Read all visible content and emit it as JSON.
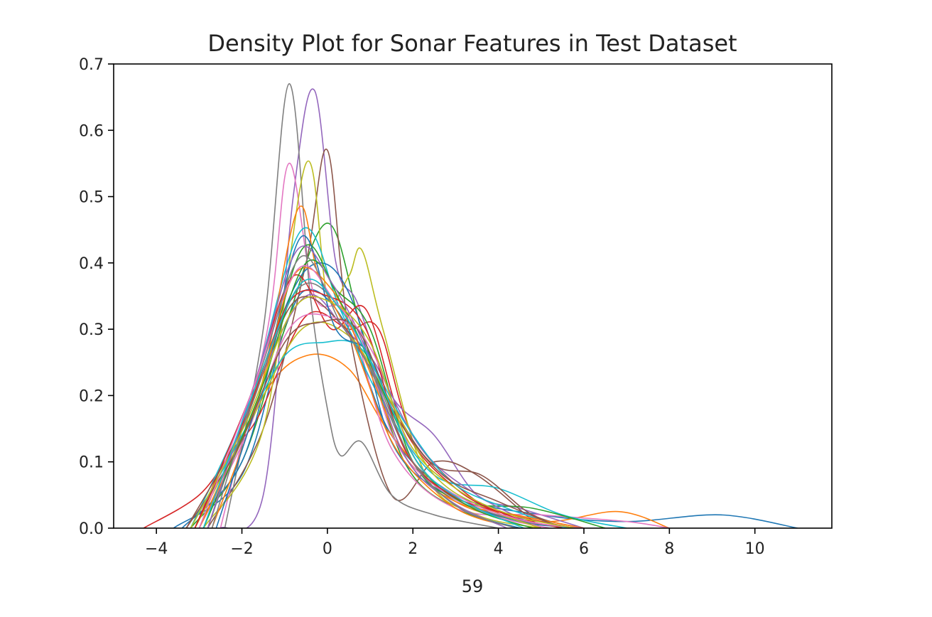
{
  "chart_data": {
    "type": "line",
    "title": "Density Plot for Sonar Features in Test Dataset",
    "xlabel": "59",
    "ylabel": "",
    "xlim": [
      -5,
      11.8
    ],
    "ylim": [
      0.0,
      0.7
    ],
    "xticks": [
      -4,
      -2,
      0,
      2,
      4,
      6,
      8,
      10
    ],
    "yticks": [
      0.0,
      0.1,
      0.2,
      0.3,
      0.4,
      0.5,
      0.6,
      0.7
    ],
    "xtick_labels": [
      "−4",
      "−2",
      "0",
      "2",
      "4",
      "6",
      "8",
      "10"
    ],
    "ytick_labels": [
      "0.0",
      "0.1",
      "0.2",
      "0.3",
      "0.4",
      "0.5",
      "0.6",
      "0.7"
    ],
    "grid": false,
    "legend": "none",
    "palette": [
      "#1f77b4",
      "#ff7f0e",
      "#2ca02c",
      "#d62728",
      "#9467bd",
      "#8c564b",
      "#e377c2",
      "#7f7f7f",
      "#bcbd22",
      "#17becf"
    ],
    "series": [
      {
        "values": [
          [
            -3.6,
            0.0
          ],
          [
            -2.0,
            0.08
          ],
          [
            -1.0,
            0.3
          ],
          [
            -0.4,
            0.36
          ],
          [
            0.5,
            0.3
          ],
          [
            1.5,
            0.14
          ],
          [
            3.0,
            0.05
          ],
          [
            5.0,
            0.02
          ],
          [
            7.0,
            0.01
          ],
          [
            9.2,
            0.02
          ],
          [
            11.0,
            0.0
          ]
        ]
      },
      {
        "values": [
          [
            -3.0,
            0.0
          ],
          [
            -1.5,
            0.2
          ],
          [
            -0.5,
            0.26
          ],
          [
            0.5,
            0.24
          ],
          [
            1.5,
            0.14
          ],
          [
            3.0,
            0.04
          ],
          [
            5.0,
            0.01
          ],
          [
            6.8,
            0.025
          ],
          [
            8.0,
            0.0
          ]
        ]
      },
      {
        "values": [
          [
            -3.2,
            0.0
          ],
          [
            -2.0,
            0.1
          ],
          [
            -1.0,
            0.3
          ],
          [
            0.0,
            0.46
          ],
          [
            0.8,
            0.3
          ],
          [
            1.8,
            0.1
          ],
          [
            3.0,
            0.03
          ],
          [
            4.5,
            0.0
          ]
        ]
      },
      {
        "values": [
          [
            -4.3,
            0.0
          ],
          [
            -3.0,
            0.05
          ],
          [
            -2.2,
            0.12
          ],
          [
            -1.6,
            0.17
          ],
          [
            -0.5,
            0.32
          ],
          [
            0.5,
            0.3
          ],
          [
            1.2,
            0.3
          ],
          [
            2.0,
            0.14
          ],
          [
            3.5,
            0.04
          ],
          [
            5.0,
            0.0
          ]
        ]
      },
      {
        "values": [
          [
            -2.5,
            0.0
          ],
          [
            -1.5,
            0.05
          ],
          [
            -0.8,
            0.5
          ],
          [
            -0.3,
            0.66
          ],
          [
            0.2,
            0.4
          ],
          [
            0.7,
            0.34
          ],
          [
            1.5,
            0.2
          ],
          [
            2.5,
            0.14
          ],
          [
            3.5,
            0.05
          ],
          [
            4.5,
            0.03
          ],
          [
            6.0,
            0.0
          ]
        ]
      },
      {
        "values": [
          [
            -2.8,
            0.0
          ],
          [
            -1.5,
            0.15
          ],
          [
            -0.5,
            0.4
          ],
          [
            0.0,
            0.57
          ],
          [
            0.5,
            0.3
          ],
          [
            1.5,
            0.05
          ],
          [
            2.5,
            0.1
          ],
          [
            3.5,
            0.08
          ],
          [
            5.0,
            0.0
          ]
        ]
      },
      {
        "values": [
          [
            -2.5,
            0.0
          ],
          [
            -1.4,
            0.3
          ],
          [
            -0.9,
            0.55
          ],
          [
            -0.3,
            0.35
          ],
          [
            0.5,
            0.32
          ],
          [
            1.5,
            0.12
          ],
          [
            3.0,
            0.03
          ],
          [
            5.0,
            0.02
          ],
          [
            7.0,
            0.01
          ],
          [
            8.0,
            0.0
          ]
        ]
      },
      {
        "values": [
          [
            -2.4,
            0.0
          ],
          [
            -1.5,
            0.3
          ],
          [
            -0.9,
            0.67
          ],
          [
            -0.4,
            0.35
          ],
          [
            0.0,
            0.18
          ],
          [
            0.3,
            0.11
          ],
          [
            0.8,
            0.13
          ],
          [
            1.5,
            0.05
          ],
          [
            2.5,
            0.02
          ],
          [
            4.0,
            0.0
          ]
        ]
      },
      {
        "values": [
          [
            -2.9,
            0.0
          ],
          [
            -1.5,
            0.15
          ],
          [
            -0.5,
            0.55
          ],
          [
            0.0,
            0.35
          ],
          [
            0.5,
            0.38
          ],
          [
            0.8,
            0.42
          ],
          [
            1.3,
            0.3
          ],
          [
            2.3,
            0.08
          ],
          [
            3.5,
            0.02
          ],
          [
            5.0,
            0.0
          ]
        ]
      },
      {
        "values": [
          [
            -3.2,
            0.0
          ],
          [
            -1.8,
            0.2
          ],
          [
            -0.6,
            0.45
          ],
          [
            0.3,
            0.33
          ],
          [
            1.2,
            0.2
          ],
          [
            2.5,
            0.08
          ],
          [
            4.0,
            0.06
          ],
          [
            5.5,
            0.02
          ],
          [
            7.0,
            0.0
          ]
        ]
      },
      {
        "values": [
          [
            -3.4,
            0.0
          ],
          [
            -2.0,
            0.1
          ],
          [
            -1.0,
            0.33
          ],
          [
            -0.2,
            0.4
          ],
          [
            0.6,
            0.34
          ],
          [
            1.5,
            0.13
          ],
          [
            2.8,
            0.05
          ],
          [
            4.5,
            0.01
          ],
          [
            6.0,
            0.0
          ]
        ]
      },
      {
        "values": [
          [
            -2.7,
            0.0
          ],
          [
            -1.6,
            0.2
          ],
          [
            -0.7,
            0.48
          ],
          [
            -0.2,
            0.38
          ],
          [
            0.6,
            0.28
          ],
          [
            1.6,
            0.12
          ],
          [
            3.0,
            0.03
          ],
          [
            4.5,
            0.0
          ]
        ]
      },
      {
        "values": [
          [
            -3.0,
            0.0
          ],
          [
            -1.7,
            0.18
          ],
          [
            -0.6,
            0.42
          ],
          [
            0.2,
            0.36
          ],
          [
            1.0,
            0.3
          ],
          [
            2.0,
            0.1
          ],
          [
            3.2,
            0.04
          ],
          [
            4.8,
            0.03
          ],
          [
            6.5,
            0.0
          ]
        ]
      },
      {
        "values": [
          [
            -3.1,
            0.0
          ],
          [
            -1.8,
            0.2
          ],
          [
            -0.8,
            0.38
          ],
          [
            0.1,
            0.3
          ],
          [
            0.9,
            0.33
          ],
          [
            1.8,
            0.15
          ],
          [
            3.0,
            0.06
          ],
          [
            4.2,
            0.02
          ],
          [
            5.5,
            0.0
          ]
        ]
      },
      {
        "values": [
          [
            -2.9,
            0.0
          ],
          [
            -1.6,
            0.22
          ],
          [
            -0.5,
            0.35
          ],
          [
            0.4,
            0.3
          ],
          [
            1.1,
            0.25
          ],
          [
            2.2,
            0.12
          ],
          [
            3.5,
            0.05
          ],
          [
            5.0,
            0.0
          ]
        ]
      },
      {
        "values": [
          [
            -3.3,
            0.0
          ],
          [
            -2.0,
            0.15
          ],
          [
            -0.8,
            0.34
          ],
          [
            0.3,
            0.31
          ],
          [
            1.2,
            0.22
          ],
          [
            2.4,
            0.1
          ],
          [
            3.6,
            0.08
          ],
          [
            4.8,
            0.02
          ],
          [
            6.0,
            0.0
          ]
        ]
      },
      {
        "values": [
          [
            -3.0,
            0.0
          ],
          [
            -1.9,
            0.14
          ],
          [
            -0.9,
            0.3
          ],
          [
            0.0,
            0.32
          ],
          [
            0.8,
            0.28
          ],
          [
            1.6,
            0.13
          ],
          [
            2.6,
            0.06
          ],
          [
            3.8,
            0.02
          ],
          [
            5.2,
            0.0
          ]
        ]
      },
      {
        "values": [
          [
            -2.8,
            0.0
          ],
          [
            -1.7,
            0.2
          ],
          [
            -0.7,
            0.36
          ],
          [
            0.2,
            0.34
          ],
          [
            1.0,
            0.24
          ],
          [
            2.0,
            0.1
          ],
          [
            3.2,
            0.04
          ],
          [
            4.6,
            0.01
          ],
          [
            6.0,
            0.0
          ]
        ]
      },
      {
        "values": [
          [
            -3.1,
            0.0
          ],
          [
            -1.8,
            0.16
          ],
          [
            -0.6,
            0.3
          ],
          [
            0.5,
            0.29
          ],
          [
            1.4,
            0.2
          ],
          [
            2.5,
            0.08
          ],
          [
            3.7,
            0.03
          ],
          [
            5.0,
            0.0
          ]
        ]
      },
      {
        "values": [
          [
            -3.2,
            0.0
          ],
          [
            -2.0,
            0.14
          ],
          [
            -1.0,
            0.26
          ],
          [
            -0.1,
            0.28
          ],
          [
            0.8,
            0.27
          ],
          [
            1.8,
            0.16
          ],
          [
            2.9,
            0.07
          ],
          [
            4.2,
            0.03
          ],
          [
            5.6,
            0.0
          ]
        ]
      },
      {
        "values": [
          [
            -2.6,
            0.0
          ],
          [
            -1.5,
            0.22
          ],
          [
            -0.6,
            0.44
          ],
          [
            0.2,
            0.3
          ],
          [
            1.0,
            0.26
          ],
          [
            1.9,
            0.11
          ],
          [
            3.1,
            0.03
          ],
          [
            4.5,
            0.0
          ]
        ]
      },
      {
        "values": [
          [
            -3.0,
            0.0
          ],
          [
            -1.7,
            0.18
          ],
          [
            -0.8,
            0.38
          ],
          [
            0.1,
            0.36
          ],
          [
            0.9,
            0.25
          ],
          [
            1.9,
            0.1
          ],
          [
            3.0,
            0.04
          ],
          [
            4.4,
            0.02
          ],
          [
            6.0,
            0.0
          ]
        ]
      },
      {
        "values": [
          [
            -2.9,
            0.0
          ],
          [
            -1.6,
            0.2
          ],
          [
            -0.5,
            0.4
          ],
          [
            0.4,
            0.33
          ],
          [
            1.2,
            0.22
          ],
          [
            2.2,
            0.09
          ],
          [
            3.4,
            0.03
          ],
          [
            4.8,
            0.0
          ]
        ]
      },
      {
        "values": [
          [
            -3.1,
            0.0
          ],
          [
            -1.9,
            0.17
          ],
          [
            -0.9,
            0.34
          ],
          [
            0.0,
            0.35
          ],
          [
            0.9,
            0.3
          ],
          [
            1.8,
            0.12
          ],
          [
            2.9,
            0.05
          ],
          [
            4.3,
            0.02
          ],
          [
            5.8,
            0.0
          ]
        ]
      },
      {
        "values": [
          [
            -2.8,
            0.0
          ],
          [
            -1.6,
            0.24
          ],
          [
            -0.7,
            0.42
          ],
          [
            0.1,
            0.37
          ],
          [
            0.9,
            0.27
          ],
          [
            1.8,
            0.11
          ],
          [
            2.9,
            0.04
          ],
          [
            4.2,
            0.0
          ]
        ]
      },
      {
        "values": [
          [
            -3.3,
            0.0
          ],
          [
            -2.1,
            0.12
          ],
          [
            -1.0,
            0.28
          ],
          [
            -0.2,
            0.31
          ],
          [
            0.7,
            0.3
          ],
          [
            1.6,
            0.17
          ],
          [
            2.7,
            0.08
          ],
          [
            4.0,
            0.04
          ],
          [
            5.5,
            0.0
          ]
        ]
      },
      {
        "values": [
          [
            -3.0,
            0.0
          ],
          [
            -1.8,
            0.2
          ],
          [
            -0.7,
            0.39
          ],
          [
            0.2,
            0.34
          ],
          [
            1.1,
            0.26
          ],
          [
            2.1,
            0.1
          ],
          [
            3.3,
            0.04
          ],
          [
            4.7,
            0.01
          ],
          [
            6.0,
            0.0
          ]
        ]
      },
      {
        "values": [
          [
            -2.7,
            0.0
          ],
          [
            -1.5,
            0.25
          ],
          [
            -0.6,
            0.41
          ],
          [
            0.3,
            0.31
          ],
          [
            1.1,
            0.23
          ],
          [
            2.0,
            0.1
          ],
          [
            3.1,
            0.03
          ],
          [
            4.4,
            0.0
          ]
        ]
      },
      {
        "values": [
          [
            -3.2,
            0.0
          ],
          [
            -1.9,
            0.16
          ],
          [
            -0.8,
            0.33
          ],
          [
            0.1,
            0.34
          ],
          [
            1.0,
            0.28
          ],
          [
            1.9,
            0.13
          ],
          [
            3.0,
            0.06
          ],
          [
            4.3,
            0.02
          ],
          [
            5.8,
            0.0
          ]
        ]
      },
      {
        "values": [
          [
            -2.9,
            0.0
          ],
          [
            -1.7,
            0.21
          ],
          [
            -0.6,
            0.37
          ],
          [
            0.3,
            0.33
          ],
          [
            1.1,
            0.24
          ],
          [
            2.1,
            0.1
          ],
          [
            3.2,
            0.04
          ],
          [
            4.6,
            0.0
          ]
        ]
      }
    ]
  }
}
